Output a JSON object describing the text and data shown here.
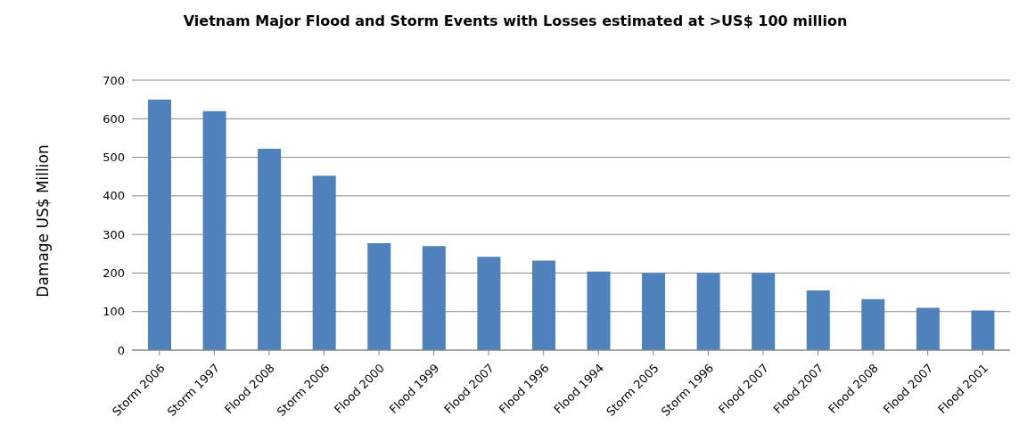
{
  "chart_data": {
    "type": "bar",
    "title": "Vietnam Major Flood and Storm Events with Losses estimated at >US$ 100 million",
    "ylabel": "Damage US$ Million",
    "categories": [
      "Storm 2006",
      "Storm 1997",
      "Flood 2008",
      "Storm 2006",
      "Flood 2000",
      "Flood 1999",
      "Flood 2007",
      "Flood 1996",
      "Flood 1994",
      "Storm 2005",
      "Storm 1996",
      "Flood 2007",
      "Flood 2007",
      "Flood 2008",
      "Flood 2007",
      "Flood 2001"
    ],
    "values": [
      650,
      620,
      522,
      452,
      277,
      270,
      242,
      232,
      204,
      200,
      200,
      200,
      155,
      132,
      110,
      103
    ],
    "color": "#4f81bd",
    "ylim": [
      0,
      700
    ],
    "yticks": [
      0,
      100,
      200,
      300,
      400,
      500,
      600,
      700
    ],
    "grid": "y"
  }
}
